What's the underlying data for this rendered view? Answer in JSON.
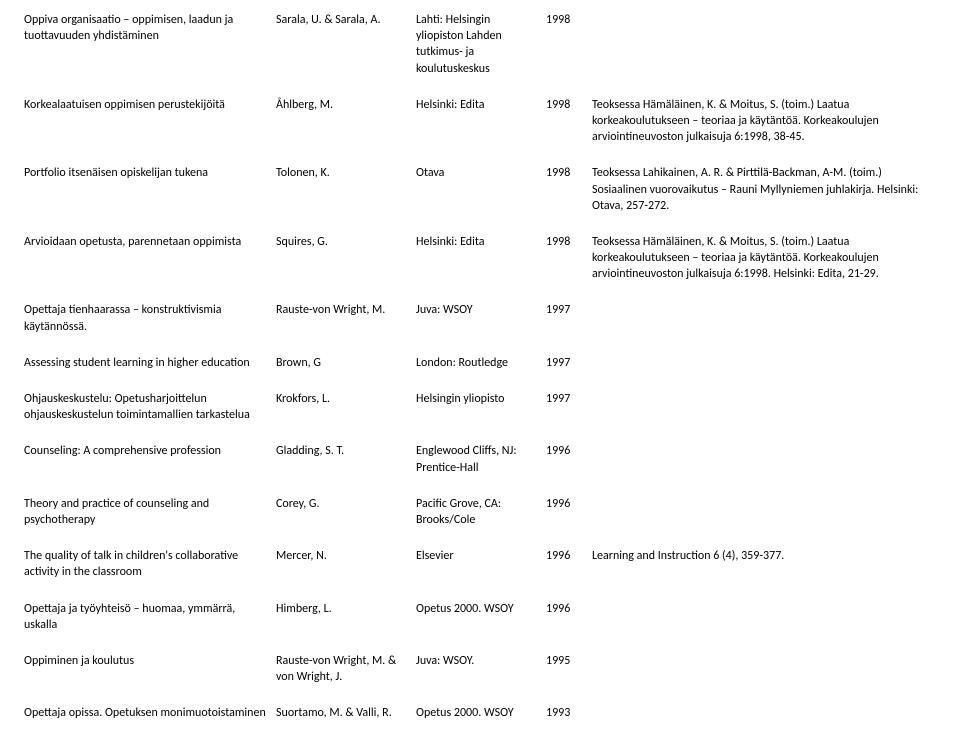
{
  "rows": [
    {
      "title": "Oppiva organisaatio – oppimisen, laadun ja tuottavuuden yhdistäminen",
      "author": "Sarala, U. & Sarala, A.",
      "publisher": "Lahti: Helsingin yliopiston Lahden tutkimus- ja koulutuskeskus",
      "year": "1998",
      "notes": ""
    },
    {
      "title": "Korkealaatuisen oppimisen perustekijöitä",
      "author": "Åhlberg, M.",
      "publisher": "Helsinki: Edita",
      "year": "1998",
      "notes": "Teoksessa Hämäläinen, K. & Moitus, S. (toim.) Laatua korkeakoulutukseen – teoriaa ja käytäntöä. Korkeakoulujen arviointineuvoston julkaisuja 6:1998, 38-45."
    },
    {
      "title": "Portfolio itsenäisen opiskelijan tukena",
      "author": "Tolonen, K.",
      "publisher": "Otava",
      "year": "1998",
      "notes": "Teoksessa Lahikainen, A. R. & Pirttilä-Backman, A-M. (toim.) Sosiaalinen vuorovaikutus – Rauni Myllyniemen juhlakirja. Helsinki: Otava, 257-272."
    },
    {
      "title": "Arvioidaan opetusta, parennetaan oppimista",
      "author": "Squires, G.",
      "publisher": "Helsinki: Edita",
      "year": "1998",
      "notes": "Teoksessa Hämäläinen, K. & Moitus, S. (toim.) Laatua korkeakoulutukseen – teoriaa ja käytäntöä. Korkeakoulujen arviointineuvoston julkaisuja 6:1998. Helsinki: Edita, 21-29."
    },
    {
      "title": "Opettaja tienhaarassa – konstruktivismia käytännössä.",
      "author": "Rauste-von Wright, M.",
      "publisher": "Juva: WSOY",
      "year": "1997",
      "notes": ""
    },
    {
      "title": "Assessing student learning in higher education",
      "author": "Brown, G",
      "publisher": "London: Routledge",
      "year": "1997",
      "notes": ""
    },
    {
      "title": "Ohjauskeskustelu: Opetusharjoittelun ohjauskeskustelun toimintamallien tarkastelua",
      "author": "Krokfors, L.",
      "publisher": "Helsingin yliopisto",
      "year": "1997",
      "notes": ""
    },
    {
      "title": "Counseling: A comprehensive profession",
      "author": "Gladding, S. T.",
      "publisher": "Englewood Cliffs, NJ: Prentice-Hall",
      "year": "1996",
      "notes": ""
    },
    {
      "title": "Theory and practice of counseling and psychotherapy",
      "author": "Corey, G.",
      "publisher": "Pacific Grove, CA: Brooks/Cole",
      "year": "1996",
      "notes": ""
    },
    {
      "title": "The quality of talk in children's collaborative activity in the classroom",
      "author": "Mercer, N.",
      "publisher": "Elsevier",
      "year": "1996",
      "notes": "Learning and Instruction 6 (4), 359-377."
    },
    {
      "title": "Opettaja ja työyhteisö – huomaa, ymmärrä, uskalla",
      "author": "Himberg, L.",
      "publisher": "Opetus 2000. WSOY",
      "year": "1996",
      "notes": ""
    },
    {
      "title": "Oppiminen ja koulutus",
      "author": "Rauste-von Wright, M. & von Wright, J.",
      "publisher": "Juva: WSOY.",
      "year": "1995",
      "notes": ""
    },
    {
      "title": "Opettaja opissa. Opetuksen monimuotoistaminen",
      "author": "Suortamo, M. & Valli, R.",
      "publisher": "Opetus 2000. WSOY",
      "year": "1993",
      "notes": ""
    }
  ]
}
